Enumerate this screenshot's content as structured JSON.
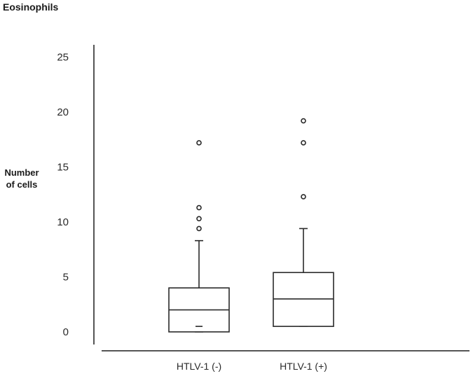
{
  "chart_data": {
    "type": "box",
    "title": "Eosinophils",
    "ylabel_lines": [
      "Number",
      "of cells"
    ],
    "ylim": [
      0,
      25
    ],
    "yticks": [
      0,
      5,
      10,
      15,
      20,
      25
    ],
    "categories": [
      "HTLV-1 (-)",
      "HTLV-1 (+)"
    ],
    "boxes": [
      {
        "label": "HTLV-1 (-)",
        "whisker_low": 0,
        "q1": 0,
        "median": 2,
        "q3": 4,
        "whisker_high": 8.3,
        "min_marker": 0.5,
        "outliers": [
          9.4,
          10.3,
          11.3,
          17.2
        ]
      },
      {
        "label": "HTLV-1 (+)",
        "whisker_low": 0.5,
        "q1": 0.5,
        "median": 3,
        "q3": 5.4,
        "whisker_high": 9.4,
        "outliers": [
          12.3,
          17.2,
          19.2
        ]
      }
    ],
    "grid": false
  }
}
